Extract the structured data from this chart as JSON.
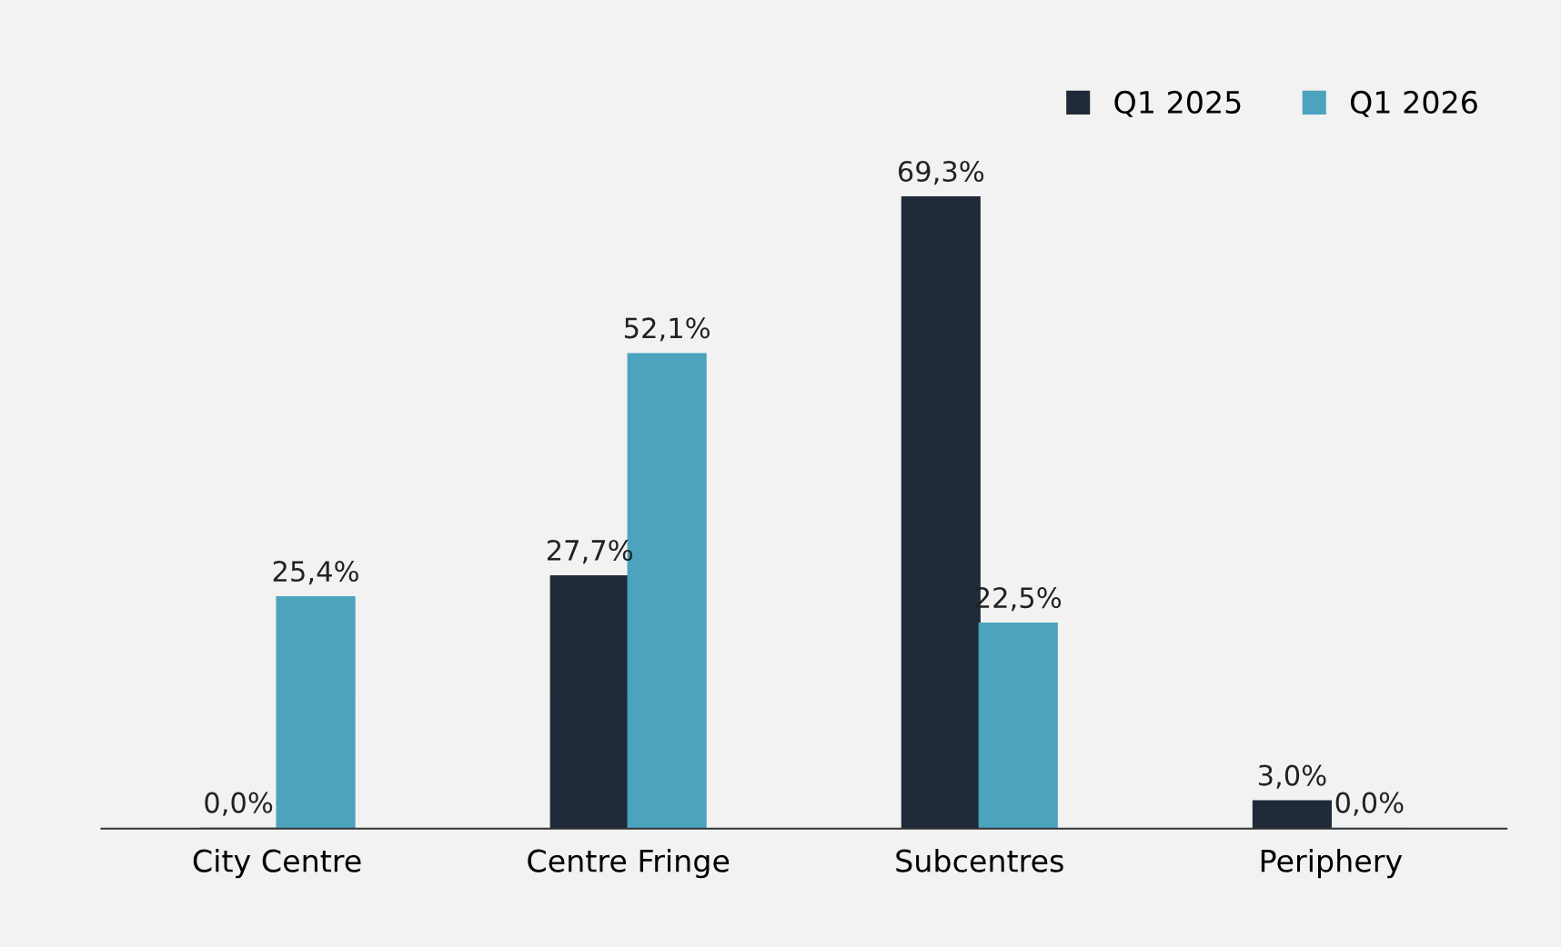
{
  "chart_data": {
    "type": "bar",
    "categories": [
      "City Centre",
      "Centre Fringe",
      "Subcentres",
      "Periphery"
    ],
    "series": [
      {
        "name": "Q1 2025",
        "color": "#1f2b38",
        "values": [
          0.0,
          27.7,
          69.3,
          3.0
        ],
        "value_labels": [
          "0,0%",
          "27,7%",
          "69,3%",
          "3,0%"
        ]
      },
      {
        "name": "Q1 2026",
        "color": "#4ba3bd",
        "values": [
          25.4,
          52.1,
          22.5,
          0.0
        ],
        "value_labels": [
          "25,4%",
          "52,1%",
          "22,5%",
          "0,0%"
        ]
      }
    ],
    "legend": "top right",
    "grid": false
  }
}
